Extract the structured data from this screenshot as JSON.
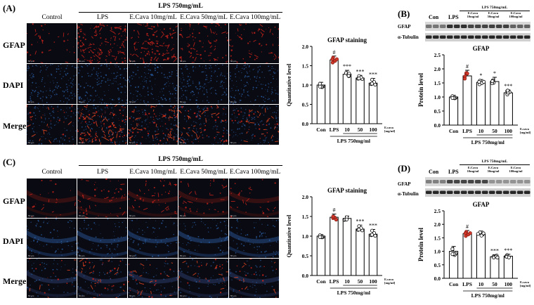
{
  "panels": {
    "A": {
      "label": "(A)",
      "treatment_header": "LPS 750mg/mL",
      "columns": [
        "Control",
        "LPS",
        "E.Cava 10mg/mL",
        "E.Cava 50mg/mL",
        "E.Cava 100mg/mL"
      ],
      "rows": [
        "GFAP",
        "DAPI",
        "Merge"
      ],
      "scale_text": "50 µm"
    },
    "B": {
      "label": "(B)",
      "blot_rows": [
        "GFAP",
        "α-Tubulin"
      ],
      "blot_header": "LPS 750mg/mL",
      "blot_lanes": [
        "Con",
        "LPS",
        "E.Cava 10mg/ml",
        "E.Cava 50mg/ml",
        "E.Cava 100mg/ml"
      ]
    },
    "C": {
      "label": "(C)",
      "treatment_header": "LPS 750mg/mL",
      "columns": [
        "Control",
        "LPS",
        "E.Cava 10mg/mL",
        "E.Cava 50mg/mL",
        "E.Cava 100mg/mL"
      ],
      "rows": [
        "GFAP",
        "DAPI",
        "Merge"
      ],
      "scale_text": "50 µm"
    },
    "D": {
      "label": "(D)",
      "blot_rows": [
        "GFAP",
        "α-Tubulin"
      ],
      "blot_header": "LPS 750mg/mL",
      "blot_lanes": [
        "Con",
        "LPS",
        "E.Cava 10mg/ml",
        "E.Cava 50mg/ml",
        "E.Cava 100mg/ml"
      ]
    }
  },
  "chart_data": [
    {
      "id": "A-chart",
      "type": "bar",
      "title": "GFAP staining",
      "ylabel": "Quantitative level",
      "categories": [
        "Con",
        "LPS",
        "10",
        "50",
        "100"
      ],
      "extra_tick_label": "E.cava [mg/ml]",
      "group_label": "LPS 750mg/ml",
      "values": [
        1.0,
        1.65,
        1.28,
        1.18,
        1.05
      ],
      "errors": [
        0.07,
        0.1,
        0.1,
        0.07,
        0.12
      ],
      "annotations": [
        "",
        "#",
        "***",
        "***",
        "***"
      ],
      "ylim": [
        0,
        2.0
      ],
      "yticks": [
        "0.0",
        "0.5",
        "1.0",
        "1.5",
        "2.0"
      ]
    },
    {
      "id": "B-chart",
      "type": "bar",
      "title": "GFAP",
      "ylabel": "Protein level",
      "categories": [
        "Con",
        "LPS",
        "10",
        "50",
        "100"
      ],
      "extra_tick_label": "E.cava [mg/ml]",
      "group_label": "LPS 750mg/ml",
      "values": [
        1.0,
        1.75,
        1.52,
        1.55,
        1.15
      ],
      "errors": [
        0.06,
        0.2,
        0.1,
        0.15,
        0.1
      ],
      "annotations": [
        "",
        "#",
        "*",
        "*",
        "***"
      ],
      "ylim": [
        0,
        2.5
      ],
      "yticks": [
        "0.0",
        "0.5",
        "1.0",
        "1.5",
        "2.0",
        "2.5"
      ]
    },
    {
      "id": "C-chart",
      "type": "bar",
      "title": "GFAP staining",
      "ylabel": "Quantitative level",
      "categories": [
        "Con",
        "LPS",
        "10",
        "50",
        "100"
      ],
      "extra_tick_label": "E.cava [mg/ml]",
      "group_label": "LPS 750mg/ml",
      "values": [
        1.0,
        1.48,
        1.45,
        1.18,
        1.05
      ],
      "errors": [
        0.04,
        0.08,
        0.06,
        0.1,
        0.12
      ],
      "annotations": [
        "",
        "#",
        "",
        "***",
        "***"
      ],
      "ylim": [
        0,
        2.0
      ],
      "yticks": [
        "0.0",
        "0.5",
        "1.0",
        "1.5",
        "2.0"
      ]
    },
    {
      "id": "D-chart",
      "type": "bar",
      "title": "GFAP",
      "ylabel": "Protein level",
      "categories": [
        "Con",
        "LPS",
        "10",
        "50",
        "100"
      ],
      "extra_tick_label": "E.cava [mg/ml]",
      "group_label": "LPS 750mg/ml",
      "values": [
        1.0,
        1.65,
        1.63,
        0.8,
        0.82
      ],
      "errors": [
        0.18,
        0.12,
        0.12,
        0.07,
        0.07
      ],
      "annotations": [
        "",
        "#",
        "",
        "***",
        "***"
      ],
      "ylim": [
        0,
        2.5
      ],
      "yticks": [
        "0.0",
        "0.5",
        "1.0",
        "1.5",
        "2.0",
        "2.5"
      ]
    }
  ],
  "colors": {
    "gfap_red": "#d8261c",
    "dapi_blue": "#2f6fc0",
    "tile_bg": "#0a0a12"
  }
}
